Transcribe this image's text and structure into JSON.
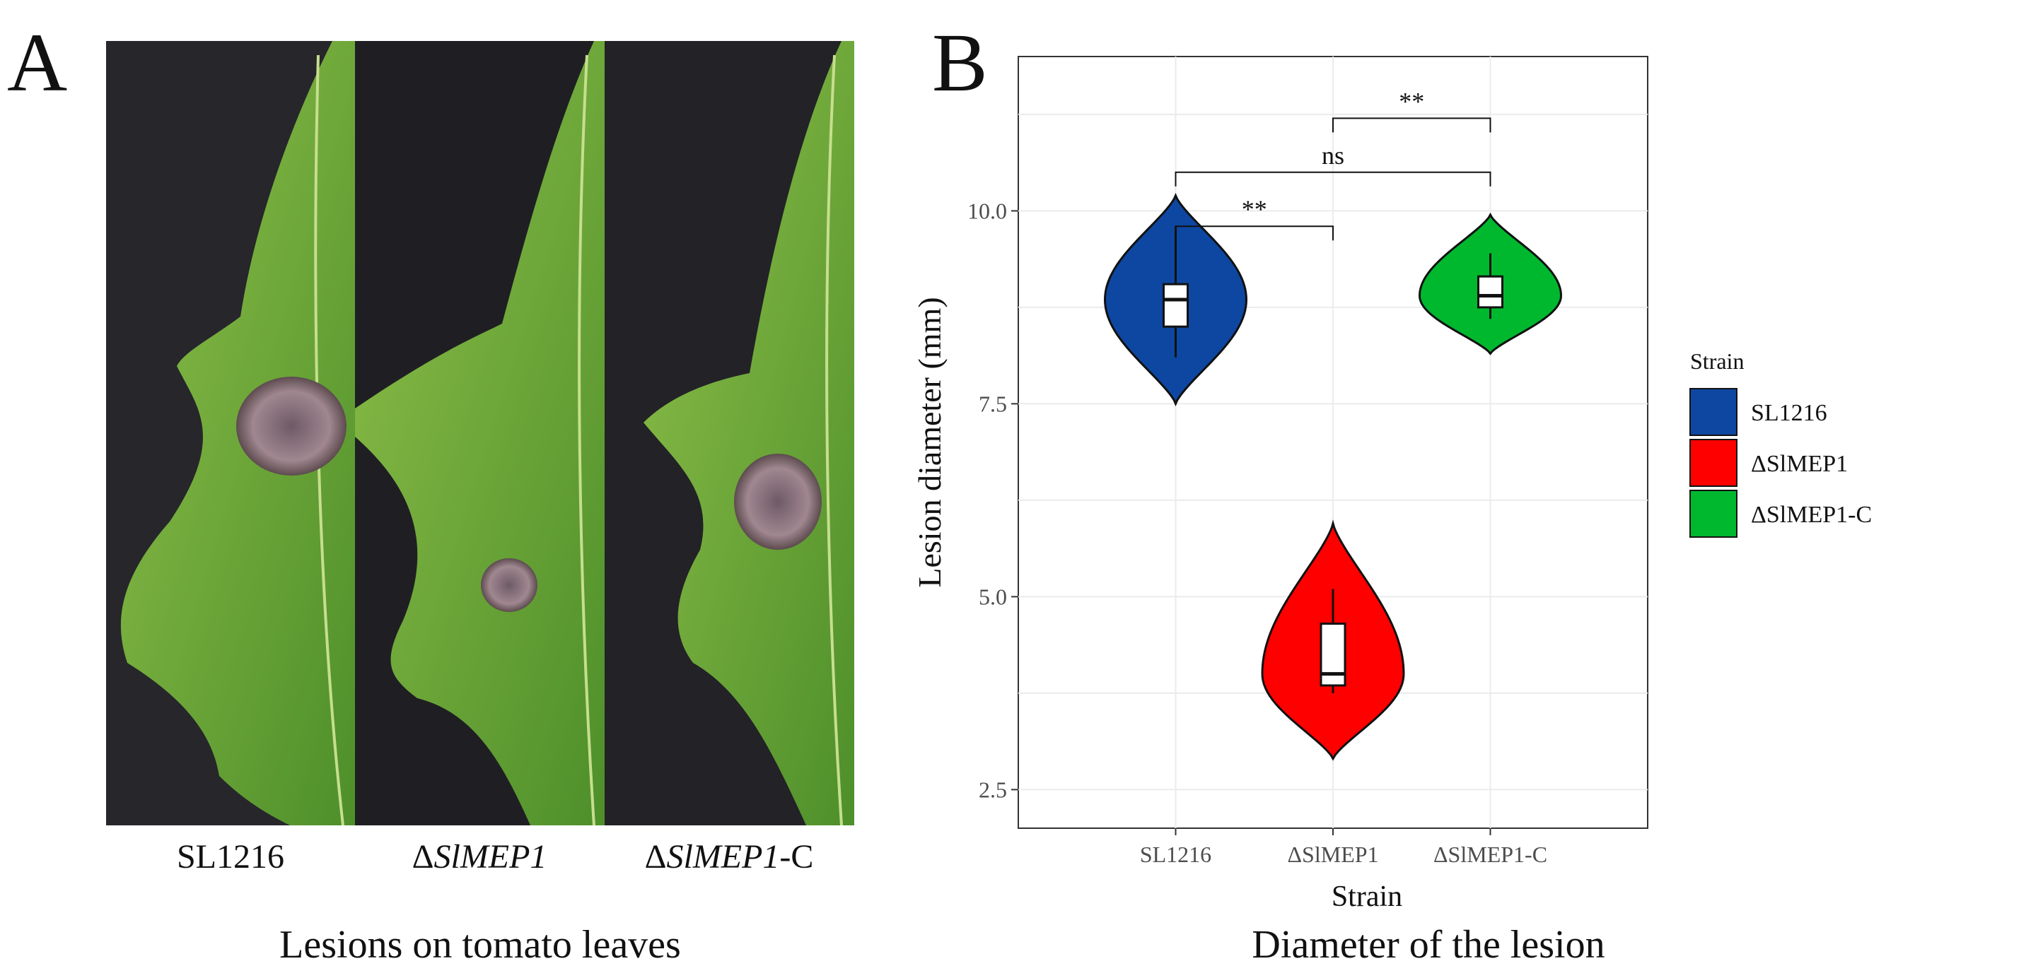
{
  "panel_a": {
    "letter": "A",
    "strips": [
      {
        "prefix": "",
        "name": "SL1216",
        "suffix": ""
      },
      {
        "prefix": "Δ",
        "name": "SlMEP1",
        "suffix": ""
      },
      {
        "prefix": "Δ",
        "name": "SlMEP1",
        "suffix": "-C"
      }
    ],
    "caption": "Lesions on tomato leaves",
    "lesion_sizes": [
      0.85,
      0.45,
      0.8
    ]
  },
  "panel_b": {
    "letter": "B",
    "caption": "Diameter of the lesion"
  },
  "chart_data": {
    "type": "violin",
    "xlabel": "Strain",
    "ylabel": "Lesion diameter (mm)",
    "ylim": [
      2.0,
      12.0
    ],
    "yticks": [
      2.5,
      5.0,
      7.5,
      10.0
    ],
    "ytick_labels": [
      "2.5",
      "5.0",
      "7.5",
      "10.0"
    ],
    "categories": [
      "SL1216",
      "ΔSlMEP1",
      "ΔSlMEP1-C"
    ],
    "legend": {
      "title": "Strain",
      "position": "right"
    },
    "grid": true,
    "series": [
      {
        "name": "SL1216",
        "color": "#0d47a1",
        "violin_min": 7.5,
        "violin_max": 10.2,
        "box": {
          "whisker_low": 8.1,
          "q1": 8.5,
          "median": 8.85,
          "q3": 9.05,
          "whisker_high": 9.8
        }
      },
      {
        "name": "ΔSlMEP1",
        "color": "#ff0000",
        "violin_min": 2.9,
        "violin_max": 5.95,
        "box": {
          "whisker_low": 3.75,
          "q1": 3.85,
          "median": 4.0,
          "q3": 4.65,
          "whisker_high": 5.1
        }
      },
      {
        "name": "ΔSlMEP1-C",
        "color": "#00b82e",
        "violin_min": 8.15,
        "violin_max": 9.95,
        "box": {
          "whisker_low": 8.6,
          "q1": 8.75,
          "median": 8.9,
          "q3": 9.15,
          "whisker_high": 9.45
        }
      }
    ],
    "annotations": [
      {
        "from": 0,
        "to": 1,
        "y": 9.8,
        "label": "**"
      },
      {
        "from": 0,
        "to": 2,
        "y": 10.5,
        "label": "ns"
      },
      {
        "from": 1,
        "to": 2,
        "y": 11.2,
        "label": "**"
      }
    ]
  }
}
